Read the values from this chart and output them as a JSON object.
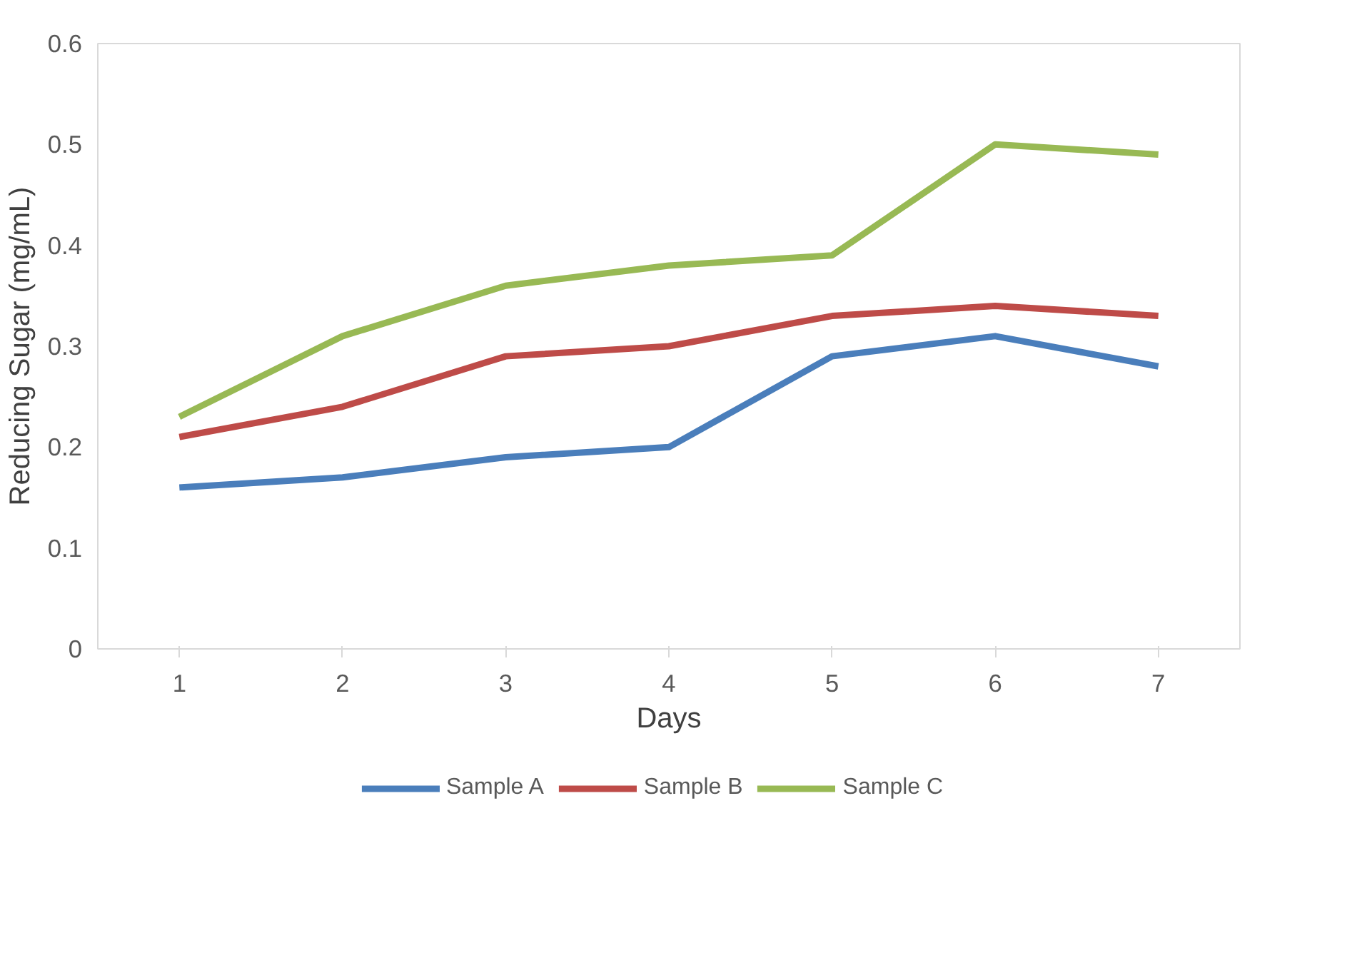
{
  "chart_data": {
    "type": "line",
    "xlabel": "Days",
    "ylabel": "Reducing Sugar (mg/mL)",
    "categories": [
      "1",
      "2",
      "3",
      "4",
      "5",
      "6",
      "7"
    ],
    "series": [
      {
        "name": "Sample A",
        "color": "#4a7ebb",
        "values": [
          0.16,
          0.17,
          0.19,
          0.2,
          0.29,
          0.31,
          0.28
        ]
      },
      {
        "name": "Sample B",
        "color": "#be4b48",
        "values": [
          0.21,
          0.24,
          0.29,
          0.3,
          0.33,
          0.34,
          0.33
        ]
      },
      {
        "name": "Sample C",
        "color": "#98b954",
        "values": [
          0.23,
          0.31,
          0.36,
          0.38,
          0.39,
          0.5,
          0.49
        ]
      }
    ],
    "ylim": [
      0,
      0.6
    ],
    "yticks": [
      0,
      0.1,
      0.2,
      0.3,
      0.4,
      0.5,
      0.6
    ],
    "grid": false,
    "legend": "bottom",
    "marker": "none",
    "line_style": "solid"
  }
}
